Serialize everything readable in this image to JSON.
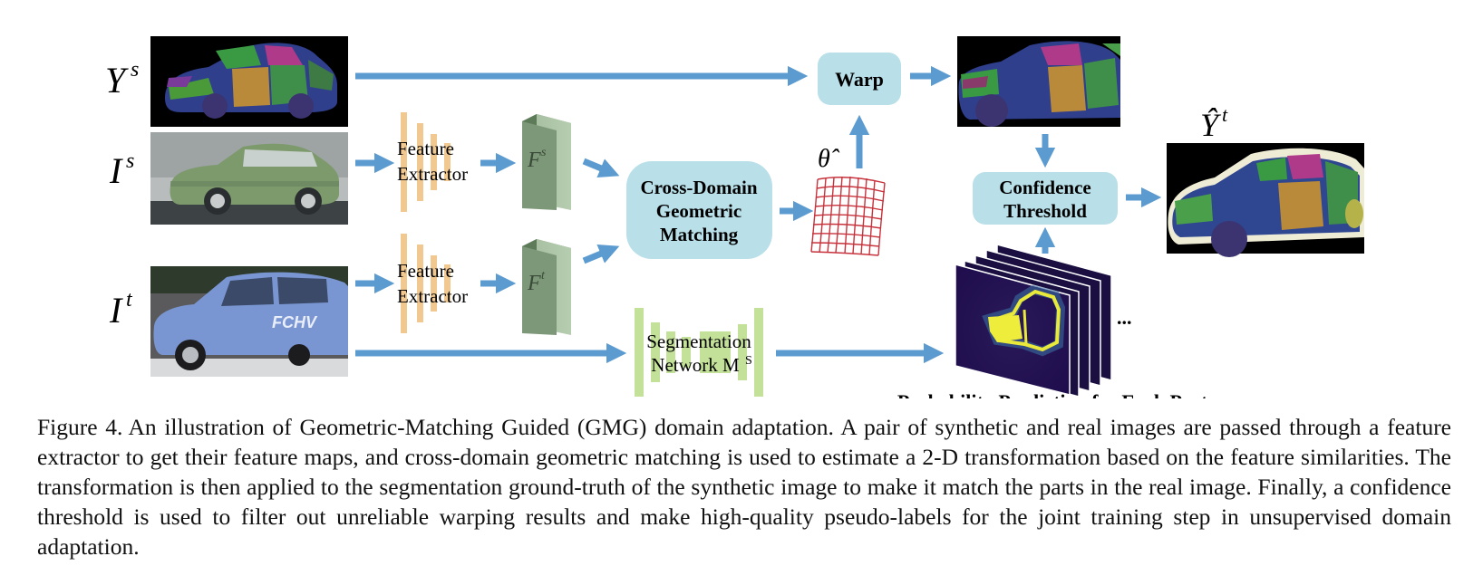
{
  "figure": {
    "inputs": {
      "ys_label": "Y",
      "ys_sup": "s",
      "is_label": "I",
      "is_sup": "s",
      "it_label": "I",
      "it_sup": "t"
    },
    "feature_extractor_top": [
      "Feature",
      "Extractor"
    ],
    "feature_extractor_bottom": [
      "Feature",
      "Extractor"
    ],
    "feature_map_source": {
      "base": "F",
      "sup": "s"
    },
    "feature_map_target": {
      "base": "F",
      "sup": "t"
    },
    "matching_box": [
      "Cross-Domain",
      "Geometric",
      "Matching"
    ],
    "theta_label": "θ̂",
    "warp_box": "Warp",
    "segmentation_network": [
      "Segmentation",
      "Network M"
    ],
    "segmentation_sup": "S",
    "confidence_box": [
      "Confidence",
      "Threshold"
    ],
    "output_label": "Ŷ",
    "output_sup": "t",
    "ellipsis": "...",
    "probability_caption": "Probability Prediction for Each Part"
  },
  "caption": {
    "label": "Figure 4.",
    "text": "An illustration of Geometric-Matching Guided (GMG) domain adaptation. A pair of synthetic and real images are passed through a feature extractor to get their feature maps, and cross-domain geometric matching is used to estimate a 2-D transformation based on the feature similarities. The transformation is then applied to the segmentation ground-truth of the synthetic image to make it match the parts in the real image. Finally, a confidence threshold is used to filter out unreliable warping results and make high-quality pseudo-labels for the joint training step in unsupervised domain adaptation."
  },
  "colors": {
    "arrow": "#5b9bd0",
    "box_fill": "#b9dfe9",
    "feature_extractor": "#f0c890",
    "feature_map": "#7d9878",
    "segnet": "#c4e19a",
    "grid": "#c7323c"
  }
}
